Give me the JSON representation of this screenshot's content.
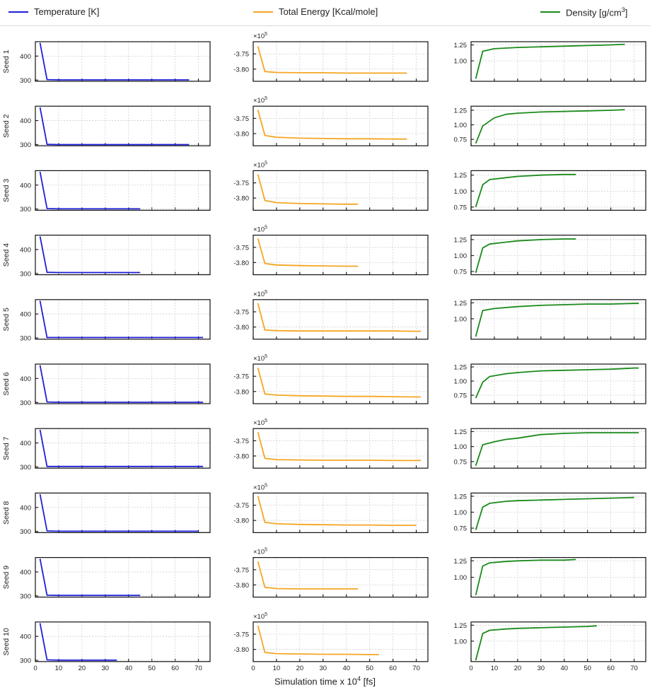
{
  "chart_data": {
    "type": "line",
    "layout": "small-multiples",
    "xlabel": "Simulation time x 10",
    "xlabel_exp": "4",
    "xlabel_unit": "[fs]",
    "xlim": [
      0,
      75
    ],
    "xticks": [
      0,
      10,
      20,
      30,
      40,
      50,
      60,
      70
    ],
    "grid": true,
    "legend_position": "top",
    "legend": [
      {
        "label": "Temperature [K]",
        "color": "#1f1fd8"
      },
      {
        "label": "Total Energy [Kcal/mole]",
        "color": "#f5a623"
      },
      {
        "label": "Density [g/cm",
        "label_sup": "3",
        "label_end": "]",
        "color": "#1a8a1a"
      }
    ],
    "row_labels": [
      "Seed 1",
      "Seed 2",
      "Seed 3",
      "Seed 4",
      "Seed 5",
      "Seed 6",
      "Seed 7",
      "Seed 8",
      "Seed 9",
      "Seed 10"
    ],
    "energy_multiplier": "×10",
    "energy_multiplier_exp": "5",
    "columns": [
      {
        "name": "Temperature [K]",
        "color": "#1f1fd8",
        "ylim": [
          295,
          460
        ],
        "yticks": [
          300,
          400
        ],
        "yticklabels": [
          "300",
          "400"
        ]
      },
      {
        "name": "Total Energy [Kcal/mole]",
        "color": "#f5a623",
        "ylim": [
          -3.84,
          -3.71
        ],
        "yticks": [
          -3.75,
          -3.8
        ],
        "yticklabels": [
          "-3.75",
          "-3.80"
        ]
      },
      {
        "name": "Density [g/cm3]",
        "color": "#1a8a1a",
        "ylim": [
          0.68,
          1.3
        ],
        "yticks": [
          0.75,
          1.0,
          1.25
        ],
        "yticklabels": [
          "0.75",
          "1.00",
          "1.25"
        ]
      }
    ],
    "rows": [
      {
        "seed": "Seed 1",
        "temperature": {
          "x": [
            2,
            5,
            10,
            20,
            30,
            40,
            50,
            60,
            66
          ],
          "y": [
            455,
            302,
            301,
            301,
            301,
            301,
            301,
            301,
            301
          ]
        },
        "energy": {
          "x": [
            2,
            5,
            10,
            20,
            30,
            40,
            50,
            60,
            66
          ],
          "y": [
            -3.725,
            -3.808,
            -3.811,
            -3.812,
            -3.812,
            -3.813,
            -3.813,
            -3.813,
            -3.813
          ]
        },
        "density": {
          "x": [
            2,
            5,
            10,
            20,
            30,
            40,
            50,
            60,
            66
          ],
          "y": [
            0.72,
            1.15,
            1.19,
            1.21,
            1.22,
            1.23,
            1.24,
            1.25,
            1.26
          ],
          "ylim": [
            0.68,
            1.3
          ],
          "yticks": [
            1.0,
            1.25
          ]
        }
      },
      {
        "seed": "Seed 2",
        "temperature": {
          "x": [
            2,
            5,
            10,
            20,
            30,
            40,
            50,
            60,
            66
          ],
          "y": [
            455,
            301,
            300,
            300,
            300,
            300,
            300,
            300,
            300
          ]
        },
        "energy": {
          "x": [
            2,
            5,
            10,
            20,
            30,
            40,
            50,
            60,
            66
          ],
          "y": [
            -3.722,
            -3.806,
            -3.812,
            -3.815,
            -3.816,
            -3.817,
            -3.817,
            -3.818,
            -3.818
          ]
        },
        "density": {
          "x": [
            2,
            5,
            10,
            15,
            20,
            30,
            40,
            50,
            60,
            66
          ],
          "y": [
            0.68,
            0.98,
            1.12,
            1.18,
            1.2,
            1.22,
            1.23,
            1.24,
            1.25,
            1.26
          ],
          "ylim": [
            0.64,
            1.32
          ],
          "yticks": [
            0.75,
            1.0,
            1.25
          ]
        }
      },
      {
        "seed": "Seed 3",
        "temperature": {
          "x": [
            2,
            5,
            10,
            20,
            30,
            40,
            45
          ],
          "y": [
            455,
            302,
            301,
            301,
            301,
            301,
            301
          ]
        },
        "energy": {
          "x": [
            2,
            5,
            10,
            20,
            30,
            40,
            45
          ],
          "y": [
            -3.722,
            -3.808,
            -3.815,
            -3.818,
            -3.819,
            -3.82,
            -3.82
          ]
        },
        "density": {
          "x": [
            2,
            5,
            8,
            15,
            20,
            30,
            40,
            45
          ],
          "y": [
            0.75,
            1.1,
            1.18,
            1.21,
            1.23,
            1.25,
            1.26,
            1.26
          ],
          "ylim": [
            0.7,
            1.32
          ],
          "yticks": [
            0.75,
            1.0,
            1.25
          ]
        }
      },
      {
        "seed": "Seed 4",
        "temperature": {
          "x": [
            2,
            5,
            10,
            20,
            30,
            40,
            45
          ],
          "y": [
            455,
            305,
            304,
            304,
            304,
            304,
            304
          ]
        },
        "energy": {
          "x": [
            2,
            5,
            10,
            20,
            30,
            40,
            45
          ],
          "y": [
            -3.721,
            -3.803,
            -3.808,
            -3.81,
            -3.811,
            -3.812,
            -3.812
          ]
        },
        "density": {
          "x": [
            2,
            5,
            8,
            15,
            20,
            30,
            40,
            45
          ],
          "y": [
            0.73,
            1.12,
            1.18,
            1.21,
            1.23,
            1.25,
            1.26,
            1.26
          ],
          "ylim": [
            0.7,
            1.32
          ],
          "yticks": [
            0.75,
            1.0,
            1.25
          ]
        }
      },
      {
        "seed": "Seed 5",
        "temperature": {
          "x": [
            2,
            5,
            10,
            20,
            30,
            40,
            50,
            60,
            70,
            72
          ],
          "y": [
            455,
            302,
            302,
            302,
            302,
            302,
            302,
            302,
            302,
            302
          ]
        },
        "energy": {
          "x": [
            2,
            5,
            10,
            20,
            30,
            40,
            50,
            60,
            70,
            72
          ],
          "y": [
            -3.722,
            -3.81,
            -3.812,
            -3.813,
            -3.813,
            -3.813,
            -3.813,
            -3.813,
            -3.814,
            -3.814
          ]
        },
        "density": {
          "x": [
            2,
            5,
            10,
            20,
            30,
            40,
            50,
            60,
            70,
            72
          ],
          "y": [
            0.72,
            1.13,
            1.16,
            1.19,
            1.21,
            1.22,
            1.23,
            1.23,
            1.24,
            1.24
          ],
          "ylim": [
            0.68,
            1.3
          ],
          "yticks": [
            1.0,
            1.25
          ]
        }
      },
      {
        "seed": "Seed 6",
        "temperature": {
          "x": [
            2,
            5,
            10,
            20,
            30,
            40,
            50,
            60,
            70,
            72
          ],
          "y": [
            455,
            302,
            301,
            301,
            301,
            301,
            301,
            301,
            301,
            301
          ]
        },
        "energy": {
          "x": [
            2,
            5,
            10,
            20,
            30,
            40,
            50,
            60,
            70,
            72
          ],
          "y": [
            -3.722,
            -3.808,
            -3.812,
            -3.814,
            -3.815,
            -3.816,
            -3.816,
            -3.817,
            -3.818,
            -3.818
          ]
        },
        "density": {
          "x": [
            2,
            5,
            8,
            15,
            20,
            30,
            40,
            50,
            60,
            70,
            72
          ],
          "y": [
            0.7,
            0.98,
            1.08,
            1.13,
            1.15,
            1.18,
            1.19,
            1.2,
            1.21,
            1.23,
            1.23
          ],
          "ylim": [
            0.6,
            1.3
          ],
          "yticks": [
            0.75,
            1.0,
            1.25
          ]
        }
      },
      {
        "seed": "Seed 7",
        "temperature": {
          "x": [
            2,
            5,
            10,
            20,
            30,
            40,
            50,
            60,
            70,
            72
          ],
          "y": [
            455,
            302,
            302,
            302,
            302,
            302,
            302,
            302,
            302,
            302
          ]
        },
        "energy": {
          "x": [
            2,
            5,
            10,
            20,
            30,
            40,
            50,
            60,
            70,
            72
          ],
          "y": [
            -3.722,
            -3.808,
            -3.812,
            -3.813,
            -3.814,
            -3.814,
            -3.814,
            -3.815,
            -3.815,
            -3.815
          ]
        },
        "density": {
          "x": [
            2,
            5,
            10,
            15,
            20,
            25,
            30,
            40,
            50,
            60,
            70,
            72
          ],
          "y": [
            0.68,
            1.03,
            1.08,
            1.12,
            1.14,
            1.17,
            1.2,
            1.22,
            1.23,
            1.23,
            1.23,
            1.23
          ],
          "ylim": [
            0.64,
            1.3
          ],
          "yticks": [
            0.75,
            1.0,
            1.25
          ]
        }
      },
      {
        "seed": "Seed 8",
        "temperature": {
          "x": [
            2,
            5,
            10,
            20,
            30,
            40,
            50,
            60,
            70
          ],
          "y": [
            455,
            302,
            301,
            301,
            301,
            301,
            301,
            301,
            301
          ]
        },
        "energy": {
          "x": [
            2,
            5,
            10,
            20,
            30,
            40,
            50,
            60,
            70
          ],
          "y": [
            -3.72,
            -3.806,
            -3.811,
            -3.813,
            -3.814,
            -3.815,
            -3.815,
            -3.816,
            -3.816
          ]
        },
        "density": {
          "x": [
            2,
            5,
            8,
            15,
            20,
            30,
            40,
            50,
            60,
            70
          ],
          "y": [
            0.72,
            1.08,
            1.14,
            1.17,
            1.18,
            1.19,
            1.2,
            1.21,
            1.22,
            1.23
          ],
          "ylim": [
            0.68,
            1.3
          ],
          "yticks": [
            0.75,
            1.0,
            1.25
          ]
        }
      },
      {
        "seed": "Seed 9",
        "temperature": {
          "x": [
            2,
            5,
            10,
            20,
            30,
            40,
            45
          ],
          "y": [
            455,
            303,
            302,
            302,
            302,
            302,
            302
          ]
        },
        "energy": {
          "x": [
            2,
            5,
            10,
            20,
            30,
            40,
            45
          ],
          "y": [
            -3.723,
            -3.808,
            -3.812,
            -3.813,
            -3.813,
            -3.813,
            -3.813
          ]
        },
        "density": {
          "x": [
            2,
            5,
            8,
            15,
            20,
            30,
            40,
            45
          ],
          "y": [
            0.73,
            1.17,
            1.22,
            1.24,
            1.25,
            1.26,
            1.26,
            1.27
          ],
          "ylim": [
            0.7,
            1.3
          ],
          "yticks": [
            1.0,
            1.25
          ]
        }
      },
      {
        "seed": "Seed 10",
        "temperature": {
          "x": [
            2,
            5,
            10,
            20,
            30,
            35
          ],
          "y": [
            455,
            302,
            301,
            301,
            301,
            301
          ]
        },
        "energy": {
          "x": [
            2,
            5,
            10,
            20,
            30,
            40,
            50,
            54
          ],
          "y": [
            -3.722,
            -3.81,
            -3.814,
            -3.815,
            -3.816,
            -3.816,
            -3.817,
            -3.817
          ]
        },
        "density": {
          "x": [
            2,
            5,
            8,
            15,
            20,
            30,
            40,
            50,
            54
          ],
          "y": [
            0.7,
            1.12,
            1.17,
            1.19,
            1.2,
            1.21,
            1.22,
            1.23,
            1.24
          ],
          "ylim": [
            0.68,
            1.3
          ],
          "yticks": [
            1.0,
            1.25
          ]
        }
      }
    ]
  }
}
